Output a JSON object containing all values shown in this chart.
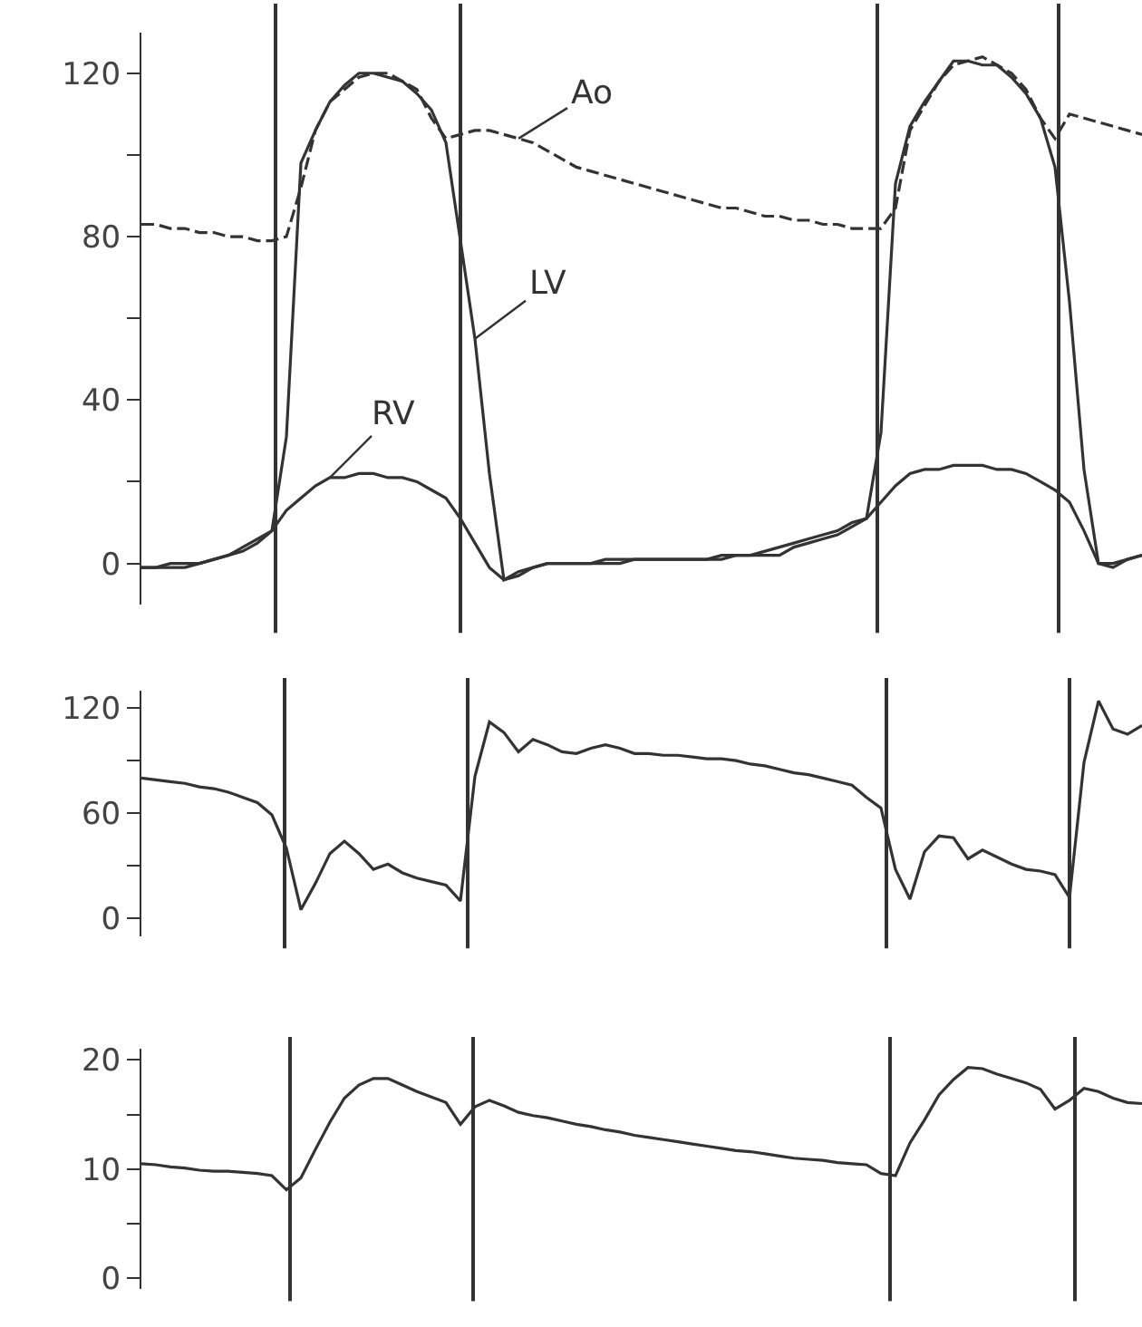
{
  "chart_data": [
    {
      "type": "line",
      "categories": [
        null,
        null,
        null,
        null,
        null,
        null,
        null,
        null,
        null,
        null,
        null,
        null,
        null,
        null,
        null,
        null,
        null,
        null,
        null,
        null,
        null,
        null,
        null,
        null,
        null,
        null,
        null,
        null,
        null,
        null,
        null,
        null,
        null,
        null,
        null,
        null,
        null,
        null,
        null,
        null,
        null,
        null,
        null,
        null,
        null,
        null,
        null,
        null,
        null,
        null,
        null,
        null,
        null,
        null,
        null,
        null,
        null,
        null,
        null,
        null,
        null,
        null,
        null,
        null,
        null,
        null,
        null,
        null,
        null,
        null
      ],
      "ylim": [
        -10,
        130
      ],
      "yticks": [
        0,
        {
          "value": 20,
          "label": null
        },
        40,
        {
          "value": 60,
          "label": null
        },
        80,
        {
          "value": 100,
          "label": null
        },
        120
      ],
      "tick_labels": "y",
      "series": [
        {
          "name": "Ao",
          "color": "#333333",
          "line_style": "dashed",
          "values": [
            83,
            83,
            82,
            82,
            81,
            81,
            80,
            80,
            79,
            79,
            80,
            92,
            106,
            113,
            116,
            119,
            120,
            120,
            118,
            116,
            109,
            104,
            105,
            106,
            106,
            105,
            104,
            103,
            101,
            99,
            97,
            96,
            95,
            94,
            93,
            92,
            91,
            90,
            89,
            88,
            87,
            87,
            86,
            85,
            85,
            84,
            84,
            83,
            83,
            82,
            82,
            82,
            87,
            106,
            112,
            118,
            122,
            123,
            124,
            122,
            120,
            116,
            109,
            104,
            110,
            109,
            108,
            107,
            106,
            105
          ]
        },
        {
          "name": "LV",
          "color": "#333333",
          "line_style": "solid",
          "values": [
            -1,
            -1,
            -1,
            -1,
            0,
            1,
            2,
            3,
            5,
            8,
            31,
            98,
            106,
            113,
            117,
            120,
            120,
            119,
            118,
            115,
            111,
            103,
            79,
            55,
            22,
            -4,
            -2,
            -1,
            0,
            0,
            0,
            0,
            1,
            1,
            1,
            1,
            1,
            1,
            1,
            1,
            2,
            2,
            2,
            2,
            2,
            4,
            5,
            6,
            7,
            9,
            11,
            32,
            93,
            107,
            113,
            118,
            123,
            123,
            122,
            122,
            119,
            115,
            109,
            97,
            64,
            23,
            0,
            0,
            1,
            2
          ]
        },
        {
          "name": "RV",
          "color": "#333333",
          "line_style": "solid",
          "values": [
            -1,
            -1,
            0,
            0,
            0,
            1,
            2,
            4,
            6,
            8,
            13,
            16,
            19,
            21,
            21,
            22,
            22,
            21,
            21,
            20,
            18,
            16,
            11,
            5,
            -1,
            -4,
            -3,
            -1,
            0,
            0,
            0,
            0,
            0,
            0,
            1,
            1,
            1,
            1,
            1,
            1,
            1,
            2,
            2,
            3,
            4,
            5,
            6,
            7,
            8,
            10,
            11,
            15,
            19,
            22,
            23,
            23,
            24,
            24,
            24,
            23,
            23,
            22,
            20,
            18,
            15,
            8,
            0,
            -1,
            1,
            2
          ]
        }
      ]
    },
    {
      "type": "line",
      "categories": [
        null,
        null,
        null,
        null,
        null,
        null,
        null,
        null,
        null,
        null,
        null,
        null,
        null,
        null,
        null,
        null,
        null,
        null,
        null,
        null,
        null,
        null,
        null,
        null,
        null,
        null,
        null,
        null,
        null,
        null,
        null,
        null,
        null,
        null,
        null,
        null,
        null,
        null,
        null,
        null,
        null,
        null,
        null,
        null,
        null,
        null,
        null,
        null,
        null,
        null,
        null,
        null,
        null,
        null,
        null,
        null,
        null,
        null,
        null,
        null,
        null,
        null,
        null,
        null,
        null,
        null,
        null,
        null,
        null,
        null
      ],
      "ylim": [
        -10,
        130
      ],
      "yticks": [
        0,
        {
          "value": 30,
          "label": null
        },
        60,
        {
          "value": 90,
          "label": null
        },
        120
      ],
      "tick_labels": "y",
      "series": [
        {
          "color": "#333333",
          "line_style": "solid",
          "values": [
            80,
            79,
            78,
            77,
            75,
            74,
            72,
            69,
            66,
            59,
            40,
            5,
            20,
            37,
            44,
            37,
            28,
            31,
            26,
            23,
            21,
            19,
            10,
            81,
            112,
            106,
            95,
            102,
            99,
            95,
            94,
            97,
            99,
            97,
            94,
            94,
            93,
            93,
            92,
            91,
            91,
            90,
            88,
            87,
            85,
            83,
            82,
            80,
            78,
            76,
            69,
            63,
            28,
            11,
            38,
            47,
            46,
            34,
            39,
            35,
            31,
            28,
            27,
            25,
            12,
            89,
            124,
            108,
            105,
            110
          ]
        }
      ]
    },
    {
      "type": "line",
      "categories": [
        null,
        null,
        null,
        null,
        null,
        null,
        null,
        null,
        null,
        null,
        null,
        null,
        null,
        null,
        null,
        null,
        null,
        null,
        null,
        null,
        null,
        null,
        null,
        null,
        null,
        null,
        null,
        null,
        null,
        null,
        null,
        null,
        null,
        null,
        null,
        null,
        null,
        null,
        null,
        null,
        null,
        null,
        null,
        null,
        null,
        null,
        null,
        null,
        null,
        null,
        null,
        null,
        null,
        null,
        null,
        null,
        null,
        null,
        null,
        null,
        null,
        null,
        null,
        null,
        null,
        null,
        null,
        null,
        null,
        null
      ],
      "ylim": [
        -1,
        21
      ],
      "yticks": [
        0,
        {
          "value": 5,
          "label": null
        },
        10,
        {
          "value": 15,
          "label": null
        },
        20
      ],
      "tick_labels": "y",
      "series": [
        {
          "color": "#333333",
          "line_style": "solid",
          "values": [
            10.5,
            10.4,
            10.2,
            10.1,
            9.9,
            9.8,
            9.8,
            9.7,
            9.6,
            9.4,
            8.1,
            9.2,
            11.8,
            14.3,
            16.5,
            17.7,
            18.3,
            18.3,
            17.7,
            17.1,
            16.6,
            16.1,
            14.1,
            15.7,
            16.3,
            15.8,
            15.2,
            14.9,
            14.7,
            14.4,
            14.1,
            13.9,
            13.6,
            13.4,
            13.1,
            12.9,
            12.7,
            12.5,
            12.3,
            12.1,
            11.9,
            11.7,
            11.6,
            11.4,
            11.2,
            11,
            10.9,
            10.8,
            10.6,
            10.5,
            10.4,
            9.6,
            9.4,
            12.4,
            14.5,
            16.8,
            18.2,
            19.3,
            19.2,
            18.7,
            18.3,
            17.9,
            17.3,
            15.5,
            16.3,
            17.4,
            17.1,
            16.5,
            16.1,
            16
          ]
        }
      ]
    }
  ]
}
